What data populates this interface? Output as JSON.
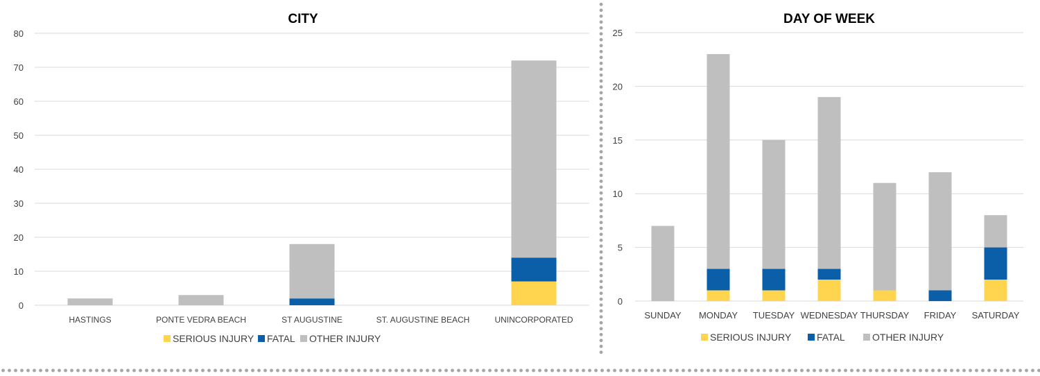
{
  "colors": {
    "serious": "#FFD44F",
    "fatal": "#0A5FA8",
    "other": "#BFBFBF",
    "grid": "#D9D9D9",
    "separator": "#A6A6A6"
  },
  "chart_data": [
    {
      "type": "bar",
      "stacked": true,
      "title": "CITY",
      "xlabel": "",
      "ylabel": "",
      "categories": [
        "HASTINGS",
        "PONTE VEDRA BEACH",
        "ST AUGUSTINE",
        "ST. AUGUSTINE BEACH",
        "UNINCORPORATED"
      ],
      "series": [
        {
          "name": "SERIOUS INJURY",
          "color_key": "serious",
          "values": [
            0,
            0,
            0,
            0,
            7
          ]
        },
        {
          "name": "FATAL",
          "color_key": "fatal",
          "values": [
            0,
            0,
            2,
            0,
            7
          ]
        },
        {
          "name": "OTHER INJURY",
          "color_key": "other",
          "values": [
            2,
            3,
            16,
            0,
            58
          ]
        }
      ],
      "ylim": [
        0,
        80
      ],
      "yticks": [
        "0",
        "10",
        "20",
        "30",
        "40",
        "50",
        "60",
        "70",
        "80"
      ],
      "grid": true,
      "legend": "bottom"
    },
    {
      "type": "bar",
      "stacked": true,
      "title": "DAY OF WEEK",
      "xlabel": "",
      "ylabel": "",
      "categories": [
        "SUNDAY",
        "MONDAY",
        "TUESDAY",
        "WEDNESDAY",
        "THURSDAY",
        "FRIDAY",
        "SATURDAY"
      ],
      "series": [
        {
          "name": "SERIOUS INJURY",
          "color_key": "serious",
          "values": [
            0,
            1,
            1,
            2,
            1,
            0,
            2
          ]
        },
        {
          "name": "FATAL",
          "color_key": "fatal",
          "values": [
            0,
            2,
            2,
            1,
            0,
            1,
            3
          ]
        },
        {
          "name": "OTHER INJURY",
          "color_key": "other",
          "values": [
            7,
            20,
            12,
            16,
            10,
            11,
            3
          ]
        }
      ],
      "ylim": [
        0,
        25
      ],
      "yticks": [
        "0",
        "5",
        "10",
        "15",
        "20",
        "25"
      ],
      "grid": true,
      "legend": "bottom"
    }
  ]
}
